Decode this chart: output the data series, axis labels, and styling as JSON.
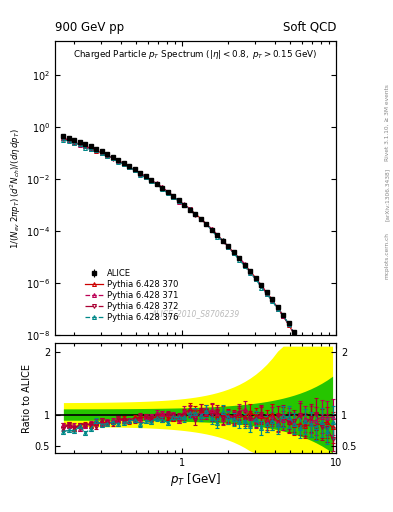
{
  "title_left": "900 GeV pp",
  "title_right": "Soft QCD",
  "ylabel_main": "1/(N_{ev} 2\\pi p_{T}) (d^{2}N_{ch})/(d\\eta dp_{T})",
  "ylabel_ratio": "Ratio to ALICE",
  "xlabel": "p_{T} [GeV]",
  "watermark": "ALICE_2010_S8706239",
  "side_text1": "Rivet 3.1.10, ≥ 3M events",
  "side_text2": "[arXiv:1306.3438]",
  "side_text3": "mcplots.cern.ch",
  "xlim": [
    0.15,
    10.0
  ],
  "ylim_main": [
    1e-08,
    2000
  ],
  "ylim_ratio": [
    0.38,
    2.15
  ],
  "background_color": "#ffffff",
  "alice_color": "#000000",
  "pythia_colors": [
    "#cc0000",
    "#bb0055",
    "#aa0033",
    "#008888"
  ],
  "pythia_labels": [
    "Pythia 6.428 370",
    "Pythia 6.428 371",
    "Pythia 6.428 372",
    "Pythia 6.428 376"
  ],
  "pythia_linestyles": [
    "-",
    "--",
    "-.",
    "--"
  ],
  "pythia_markers": [
    "^",
    "^",
    "v",
    "^"
  ],
  "band_yellow": "#ffff00",
  "band_green": "#00bb00",
  "ref_line_color": "#000000"
}
